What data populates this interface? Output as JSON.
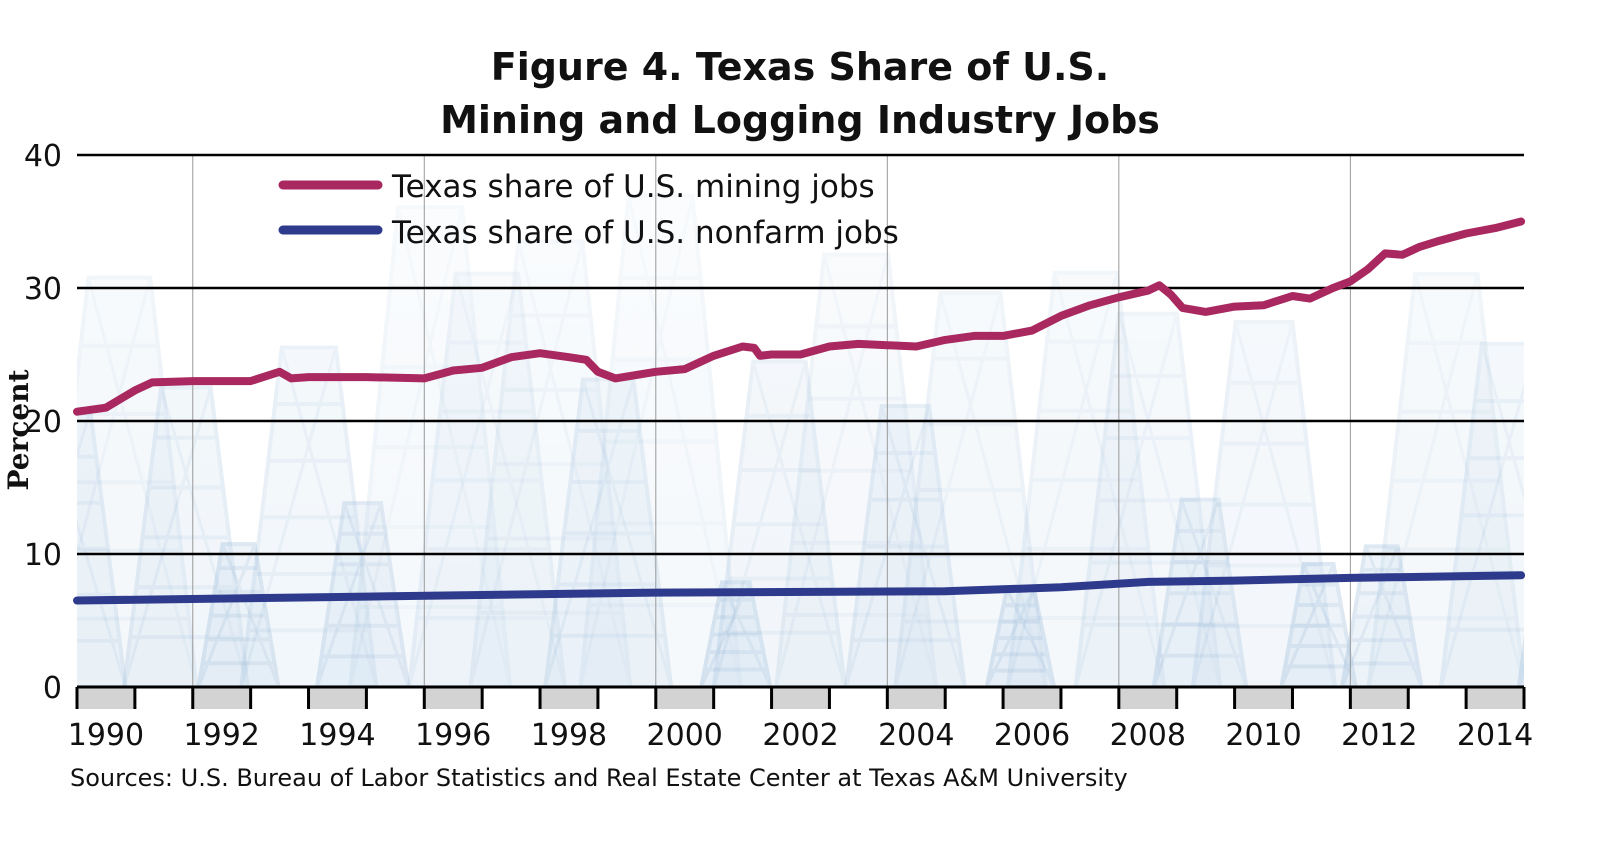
{
  "chart_data": {
    "type": "line",
    "title": [
      "Figure 4. Texas Share of U.S.",
      "Mining and Logging Industry Jobs"
    ],
    "ylabel": "Percent",
    "xlabel": "",
    "ylim": [
      0,
      40
    ],
    "xlim": [
      1990,
      2015
    ],
    "yticks": [
      "0",
      "10",
      "20",
      "30",
      "40"
    ],
    "xticks": [
      "1990",
      "1992",
      "1994",
      "1996",
      "1998",
      "2000",
      "2002",
      "2004",
      "2006",
      "2008",
      "2010",
      "2012",
      "2014"
    ],
    "grid": "horizontal",
    "legend_position": "top-left",
    "source": "Sources: U.S. Bureau of Labor Statistics and Real Estate Center at Texas A&M University",
    "series": [
      {
        "name": "Texas share of U.S. mining jobs",
        "color": "#a8285f",
        "x": [
          1990.0,
          1990.5,
          1991.0,
          1991.3,
          1992.0,
          1993.0,
          1993.5,
          1993.7,
          1994.0,
          1995.0,
          1996.0,
          1996.5,
          1997.0,
          1997.5,
          1998.0,
          1998.5,
          1998.8,
          1999.0,
          1999.3,
          2000.0,
          2000.5,
          2001.0,
          2001.5,
          2001.7,
          2001.8,
          2002.0,
          2002.5,
          2003.0,
          2003.5,
          2004.0,
          2004.5,
          2005.0,
          2005.5,
          2006.0,
          2006.5,
          2007.0,
          2007.5,
          2008.0,
          2008.3,
          2008.5,
          2008.7,
          2008.9,
          2009.1,
          2009.5,
          2010.0,
          2010.5,
          2011.0,
          2011.3,
          2011.7,
          2012.0,
          2012.3,
          2012.6,
          2012.9,
          2013.2,
          2013.5,
          2014.0,
          2014.5,
          2014.95
        ],
        "y": [
          20.7,
          21.0,
          22.3,
          22.9,
          23.0,
          23.0,
          23.7,
          23.2,
          23.3,
          23.3,
          23.2,
          23.8,
          24.0,
          24.8,
          25.1,
          24.8,
          24.6,
          23.7,
          23.2,
          23.7,
          23.9,
          24.9,
          25.6,
          25.5,
          24.9,
          25.0,
          25.0,
          25.6,
          25.8,
          25.7,
          25.6,
          26.1,
          26.4,
          26.4,
          26.8,
          27.9,
          28.7,
          29.3,
          29.6,
          29.8,
          30.2,
          29.5,
          28.5,
          28.2,
          28.6,
          28.7,
          29.4,
          29.2,
          30.0,
          30.5,
          31.4,
          32.6,
          32.5,
          33.1,
          33.5,
          34.1,
          34.5,
          35.0
        ]
      },
      {
        "name": "Texas share of U.S. nonfarm jobs",
        "color": "#2e3a8c",
        "x": [
          1990,
          1995,
          2000,
          2005,
          2007,
          2008.5,
          2010,
          2012,
          2014.95
        ],
        "y": [
          6.5,
          6.8,
          7.1,
          7.2,
          7.5,
          7.9,
          8.0,
          8.2,
          8.4
        ]
      }
    ]
  }
}
